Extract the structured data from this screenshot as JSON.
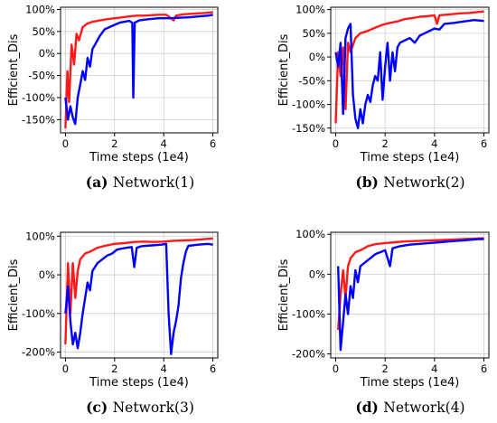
{
  "chart_data": [
    {
      "type": "line",
      "caption_letter": "(a)",
      "caption_text": "Network(1)",
      "xlabel": "Time steps (1e4)",
      "ylabel": "Efficient_Dis",
      "xlim": [
        -0.2,
        6.2
      ],
      "ylim": [
        -180,
        105
      ],
      "xticks": [
        0,
        2,
        4,
        6
      ],
      "yticks": [
        -150,
        -100,
        -50,
        0,
        50,
        100
      ],
      "ytick_labels": [
        "-150%",
        "-100%",
        "-50%",
        "0%",
        "50%",
        "100%"
      ],
      "grid": true,
      "series": [
        {
          "color": "#ff1a1a",
          "points": [
            [
              0.0,
              -170
            ],
            [
              0.08,
              -40
            ],
            [
              0.15,
              -110
            ],
            [
              0.25,
              20
            ],
            [
              0.35,
              -25
            ],
            [
              0.45,
              45
            ],
            [
              0.55,
              30
            ],
            [
              0.7,
              60
            ],
            [
              0.9,
              68
            ],
            [
              1.1,
              72
            ],
            [
              1.4,
              75
            ],
            [
              1.7,
              78
            ],
            [
              2.0,
              80
            ],
            [
              2.3,
              82
            ],
            [
              2.6,
              84
            ],
            [
              2.9,
              86
            ],
            [
              3.2,
              86
            ],
            [
              3.5,
              87
            ],
            [
              3.8,
              88
            ],
            [
              4.1,
              88
            ],
            [
              4.3,
              80
            ],
            [
              4.4,
              75
            ],
            [
              4.5,
              86
            ],
            [
              4.8,
              89
            ],
            [
              5.1,
              90
            ],
            [
              5.4,
              91
            ],
            [
              5.7,
              92
            ],
            [
              6.0,
              94
            ]
          ]
        },
        {
          "color": "#0000ff",
          "points": [
            [
              0.0,
              -100
            ],
            [
              0.1,
              -150
            ],
            [
              0.2,
              -120
            ],
            [
              0.3,
              -145
            ],
            [
              0.4,
              -160
            ],
            [
              0.5,
              -100
            ],
            [
              0.6,
              -70
            ],
            [
              0.7,
              -40
            ],
            [
              0.8,
              -60
            ],
            [
              0.9,
              -10
            ],
            [
              1.0,
              -30
            ],
            [
              1.1,
              10
            ],
            [
              1.2,
              20
            ],
            [
              1.4,
              40
            ],
            [
              1.6,
              55
            ],
            [
              1.8,
              60
            ],
            [
              2.0,
              65
            ],
            [
              2.2,
              70
            ],
            [
              2.4,
              72
            ],
            [
              2.6,
              74
            ],
            [
              2.72,
              70
            ],
            [
              2.76,
              -100
            ],
            [
              2.82,
              70
            ],
            [
              3.0,
              75
            ],
            [
              3.4,
              78
            ],
            [
              3.8,
              80
            ],
            [
              4.2,
              80
            ],
            [
              4.6,
              81
            ],
            [
              5.0,
              82
            ],
            [
              5.4,
              84
            ],
            [
              5.8,
              86
            ],
            [
              6.0,
              88
            ]
          ]
        }
      ]
    },
    {
      "type": "line",
      "caption_letter": "(b)",
      "caption_text": "Network(2)",
      "xlabel": "Time steps (1e4)",
      "ylabel": "Efficient_Dis",
      "xlim": [
        -0.2,
        6.2
      ],
      "ylim": [
        -160,
        105
      ],
      "xticks": [
        0,
        2,
        4,
        6
      ],
      "yticks": [
        -150,
        -100,
        -50,
        0,
        50,
        100
      ],
      "ytick_labels": [
        "-150%",
        "-100%",
        "-50%",
        "0%",
        "50%",
        "100%"
      ],
      "grid": true,
      "series": [
        {
          "color": "#ff1a1a",
          "points": [
            [
              0.0,
              -140
            ],
            [
              0.1,
              10
            ],
            [
              0.2,
              -40
            ],
            [
              0.3,
              20
            ],
            [
              0.4,
              -110
            ],
            [
              0.5,
              30
            ],
            [
              0.6,
              10
            ],
            [
              0.8,
              40
            ],
            [
              1.0,
              50
            ],
            [
              1.3,
              55
            ],
            [
              1.6,
              62
            ],
            [
              1.9,
              68
            ],
            [
              2.2,
              72
            ],
            [
              2.5,
              75
            ],
            [
              2.8,
              80
            ],
            [
              3.1,
              82
            ],
            [
              3.4,
              85
            ],
            [
              3.7,
              86
            ],
            [
              4.0,
              88
            ],
            [
              4.1,
              70
            ],
            [
              4.2,
              88
            ],
            [
              4.6,
              90
            ],
            [
              5.0,
              92
            ],
            [
              5.4,
              93
            ],
            [
              5.8,
              95
            ],
            [
              6.0,
              96
            ]
          ]
        },
        {
          "color": "#0000ff",
          "points": [
            [
              0.0,
              10
            ],
            [
              0.1,
              -20
            ],
            [
              0.2,
              30
            ],
            [
              0.3,
              -120
            ],
            [
              0.4,
              40
            ],
            [
              0.5,
              60
            ],
            [
              0.6,
              70
            ],
            [
              0.7,
              -80
            ],
            [
              0.8,
              -130
            ],
            [
              0.9,
              -150
            ],
            [
              1.0,
              -110
            ],
            [
              1.1,
              -140
            ],
            [
              1.2,
              -100
            ],
            [
              1.3,
              -80
            ],
            [
              1.4,
              -95
            ],
            [
              1.5,
              -60
            ],
            [
              1.6,
              -40
            ],
            [
              1.7,
              -50
            ],
            [
              1.8,
              10
            ],
            [
              1.9,
              -90
            ],
            [
              2.0,
              -20
            ],
            [
              2.1,
              30
            ],
            [
              2.2,
              -50
            ],
            [
              2.3,
              10
            ],
            [
              2.4,
              -30
            ],
            [
              2.5,
              20
            ],
            [
              2.6,
              30
            ],
            [
              2.8,
              35
            ],
            [
              3.0,
              40
            ],
            [
              3.2,
              30
            ],
            [
              3.4,
              45
            ],
            [
              3.6,
              50
            ],
            [
              3.8,
              55
            ],
            [
              4.0,
              60
            ],
            [
              4.2,
              58
            ],
            [
              4.4,
              70
            ],
            [
              4.8,
              72
            ],
            [
              5.2,
              75
            ],
            [
              5.6,
              78
            ],
            [
              6.0,
              76
            ]
          ]
        }
      ]
    },
    {
      "type": "line",
      "caption_letter": "(c)",
      "caption_text": "Network(3)",
      "xlabel": "Time steps (1e4)",
      "ylabel": "Efficient_Dis",
      "xlim": [
        -0.2,
        6.2
      ],
      "ylim": [
        -215,
        110
      ],
      "xticks": [
        0,
        2,
        4,
        6
      ],
      "yticks": [
        -200,
        -100,
        0,
        100
      ],
      "ytick_labels": [
        "-200%",
        "-100%",
        "0%",
        "100%"
      ],
      "grid": true,
      "series": [
        {
          "color": "#ff1a1a",
          "points": [
            [
              0.0,
              -180
            ],
            [
              0.1,
              30
            ],
            [
              0.2,
              -100
            ],
            [
              0.3,
              30
            ],
            [
              0.4,
              -60
            ],
            [
              0.5,
              10
            ],
            [
              0.6,
              40
            ],
            [
              0.8,
              55
            ],
            [
              1.0,
              60
            ],
            [
              1.3,
              70
            ],
            [
              1.6,
              75
            ],
            [
              2.0,
              80
            ],
            [
              2.4,
              82
            ],
            [
              2.8,
              85
            ],
            [
              3.2,
              86
            ],
            [
              3.6,
              85
            ],
            [
              4.0,
              86
            ],
            [
              4.4,
              88
            ],
            [
              4.8,
              89
            ],
            [
              5.2,
              90
            ],
            [
              5.6,
              92
            ],
            [
              6.0,
              94
            ]
          ]
        },
        {
          "color": "#0000ff",
          "points": [
            [
              0.0,
              -100
            ],
            [
              0.1,
              -30
            ],
            [
              0.2,
              -120
            ],
            [
              0.3,
              -180
            ],
            [
              0.4,
              -150
            ],
            [
              0.5,
              -190
            ],
            [
              0.6,
              -150
            ],
            [
              0.7,
              -100
            ],
            [
              0.8,
              -60
            ],
            [
              0.9,
              -20
            ],
            [
              1.0,
              -40
            ],
            [
              1.1,
              10
            ],
            [
              1.3,
              30
            ],
            [
              1.5,
              40
            ],
            [
              1.7,
              50
            ],
            [
              1.9,
              55
            ],
            [
              2.1,
              65
            ],
            [
              2.3,
              68
            ],
            [
              2.5,
              70
            ],
            [
              2.7,
              72
            ],
            [
              2.8,
              20
            ],
            [
              2.9,
              70
            ],
            [
              3.1,
              74
            ],
            [
              3.5,
              76
            ],
            [
              3.9,
              78
            ],
            [
              4.1,
              80
            ],
            [
              4.2,
              -100
            ],
            [
              4.3,
              -205
            ],
            [
              4.4,
              -150
            ],
            [
              4.5,
              -120
            ],
            [
              4.6,
              -80
            ],
            [
              4.7,
              -10
            ],
            [
              4.8,
              30
            ],
            [
              4.9,
              60
            ],
            [
              5.0,
              75
            ],
            [
              5.4,
              78
            ],
            [
              5.8,
              80
            ],
            [
              6.0,
              78
            ]
          ]
        }
      ]
    },
    {
      "type": "line",
      "caption_letter": "(d)",
      "caption_text": "Network(4)",
      "xlabel": "Time steps (1e4)",
      "ylabel": "Efficient_Dis",
      "xlim": [
        -0.2,
        6.2
      ],
      "ylim": [
        -210,
        105
      ],
      "xticks": [
        0,
        2,
        4,
        6
      ],
      "yticks": [
        -200,
        -100,
        0,
        100
      ],
      "ytick_labels": [
        "-200%",
        "-100%",
        "0%",
        "100%"
      ],
      "grid": true,
      "series": [
        {
          "color": "#ff1a1a",
          "points": [
            [
              0.1,
              -140
            ],
            [
              0.2,
              -50
            ],
            [
              0.3,
              10
            ],
            [
              0.4,
              -60
            ],
            [
              0.5,
              20
            ],
            [
              0.6,
              40
            ],
            [
              0.8,
              55
            ],
            [
              1.0,
              60
            ],
            [
              1.3,
              70
            ],
            [
              1.6,
              75
            ],
            [
              2.0,
              78
            ],
            [
              2.4,
              80
            ],
            [
              2.8,
              82
            ],
            [
              3.2,
              83
            ],
            [
              3.6,
              84
            ],
            [
              4.0,
              85
            ],
            [
              4.4,
              86
            ],
            [
              4.8,
              87
            ],
            [
              5.2,
              88
            ],
            [
              5.6,
              89
            ],
            [
              6.0,
              90
            ]
          ]
        },
        {
          "color": "#0000ff",
          "points": [
            [
              0.1,
              20
            ],
            [
              0.2,
              -190
            ],
            [
              0.3,
              -120
            ],
            [
              0.4,
              -50
            ],
            [
              0.5,
              -100
            ],
            [
              0.6,
              -30
            ],
            [
              0.7,
              -60
            ],
            [
              0.8,
              10
            ],
            [
              0.9,
              -20
            ],
            [
              1.0,
              20
            ],
            [
              1.2,
              30
            ],
            [
              1.4,
              40
            ],
            [
              1.6,
              50
            ],
            [
              1.8,
              55
            ],
            [
              2.0,
              60
            ],
            [
              2.2,
              20
            ],
            [
              2.3,
              65
            ],
            [
              2.6,
              70
            ],
            [
              3.0,
              74
            ],
            [
              3.4,
              76
            ],
            [
              3.8,
              78
            ],
            [
              4.2,
              80
            ],
            [
              4.6,
              82
            ],
            [
              5.0,
              84
            ],
            [
              5.4,
              86
            ],
            [
              5.8,
              88
            ],
            [
              6.0,
              88
            ]
          ]
        }
      ]
    }
  ]
}
